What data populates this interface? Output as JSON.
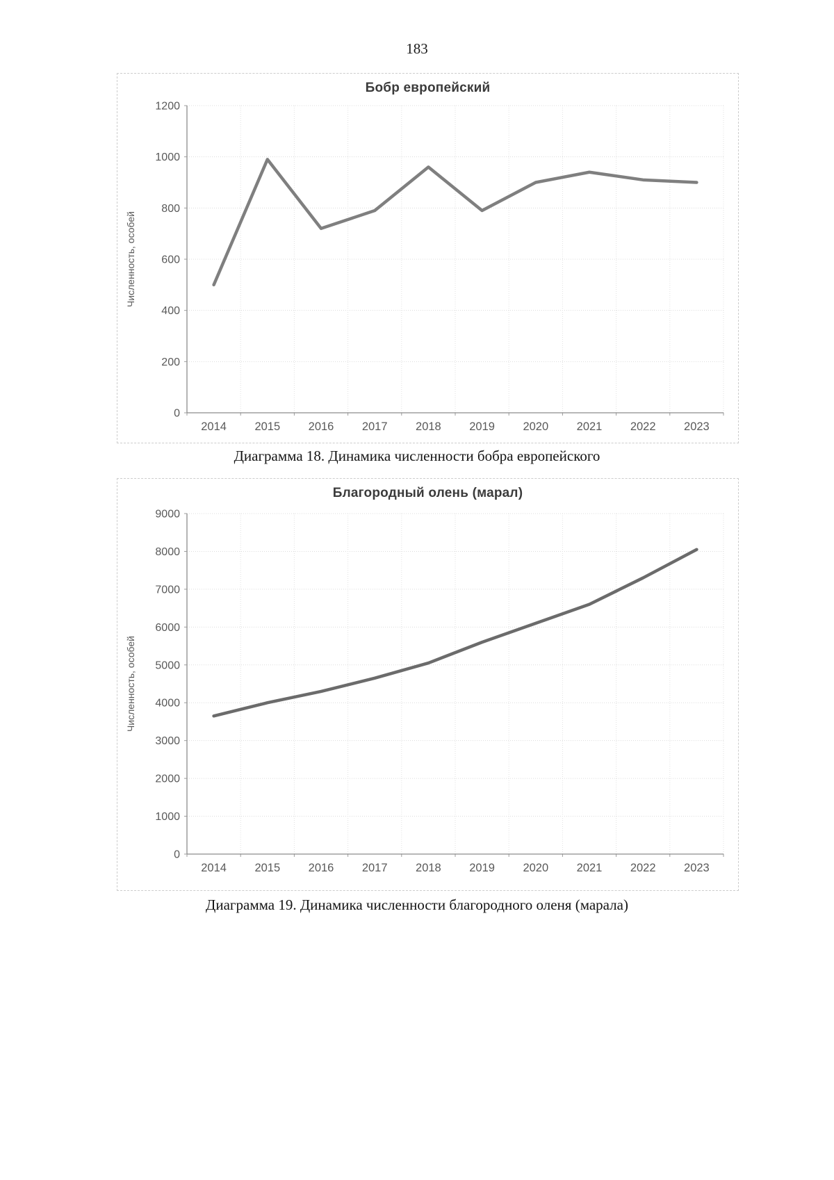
{
  "page": {
    "number": "183"
  },
  "chart_data": [
    {
      "type": "line",
      "title": "Бобр европейский",
      "ylabel": "Численность, особей",
      "xlabel": "",
      "categories": [
        "2014",
        "2015",
        "2016",
        "2017",
        "2018",
        "2019",
        "2020",
        "2021",
        "2022",
        "2023"
      ],
      "values": [
        500,
        990,
        720,
        790,
        960,
        790,
        900,
        940,
        910,
        900
      ],
      "ylim": [
        0,
        1200
      ],
      "ytick_step": 200,
      "grid": true,
      "legend": "none",
      "line_color": "#7f7f7f",
      "caption": "Диаграмма 18. Динамика численности бобра европейского"
    },
    {
      "type": "line",
      "title": "Благородный олень (марал)",
      "ylabel": "Численность, особей",
      "xlabel": "",
      "categories": [
        "2014",
        "2015",
        "2016",
        "2017",
        "2018",
        "2019",
        "2020",
        "2021",
        "2022",
        "2023"
      ],
      "values": [
        3650,
        4000,
        4300,
        4650,
        5050,
        5600,
        6100,
        6600,
        7300,
        8050
      ],
      "ylim": [
        0,
        9000
      ],
      "ytick_step": 1000,
      "grid": true,
      "legend": "none",
      "line_color": "#6b6b6b",
      "caption": "Диаграмма 19. Динамика численности благородного оленя (марала)"
    }
  ]
}
